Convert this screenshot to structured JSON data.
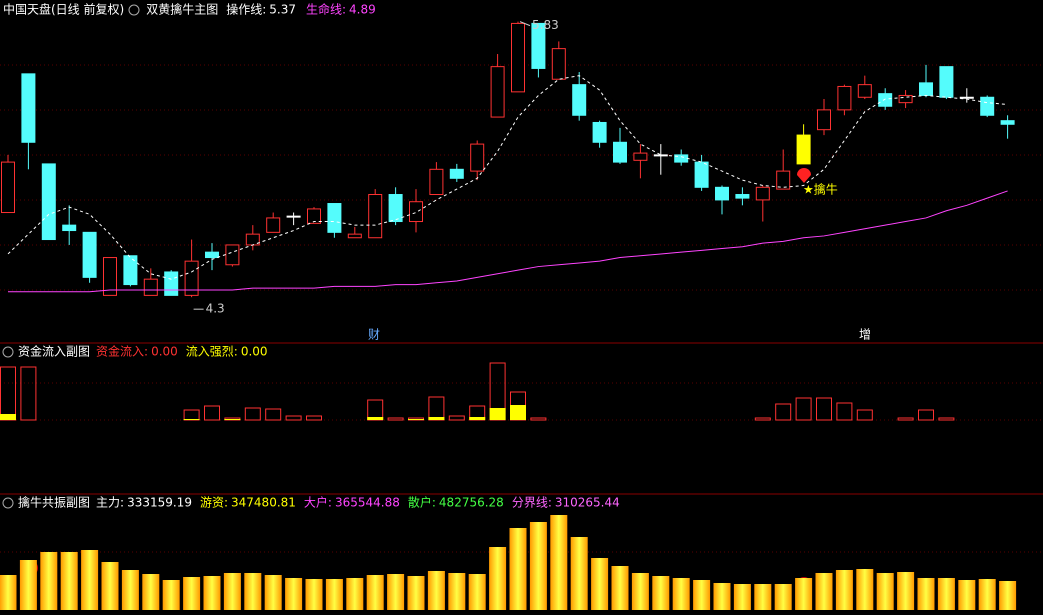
{
  "chart_data": [
    {
      "type": "candlestick",
      "title": "中国天盘(日线 前复权)",
      "subtitle": "双黄擒牛主图",
      "ylim": [
        4.09,
        5.95
      ],
      "grid": true,
      "colors": {
        "up": "#ff3232",
        "down": "#54fcfc",
        "flat": "#ffffff",
        "signal": "#ffff00"
      },
      "signal_candles": [
        39
      ],
      "markers": [
        "财",
        "增"
      ],
      "annotation": "★擒牛",
      "candles": [
        {
          "open": 4.77,
          "close": 5.05,
          "high": 5.09,
          "low": 4.77
        },
        {
          "open": 5.54,
          "close": 5.16,
          "high": 5.54,
          "low": 5.01
        },
        {
          "open": 5.04,
          "close": 4.62,
          "high": 5.04,
          "low": 4.62
        },
        {
          "open": 4.7,
          "close": 4.67,
          "high": 4.81,
          "low": 4.59
        },
        {
          "open": 4.66,
          "close": 4.41,
          "high": 4.66,
          "low": 4.38
        },
        {
          "open": 4.31,
          "close": 4.52,
          "high": 4.52,
          "low": 4.31
        },
        {
          "open": 4.53,
          "close": 4.37,
          "high": 4.53,
          "low": 4.36
        },
        {
          "open": 4.31,
          "close": 4.4,
          "high": 4.46,
          "low": 4.31
        },
        {
          "open": 4.44,
          "close": 4.31,
          "high": 4.45,
          "low": 4.31
        },
        {
          "open": 4.31,
          "close": 4.5,
          "high": 4.62,
          "low": 4.3
        },
        {
          "open": 4.55,
          "close": 4.52,
          "high": 4.6,
          "low": 4.45
        },
        {
          "open": 4.48,
          "close": 4.59,
          "high": 4.59,
          "low": 4.47
        },
        {
          "open": 4.59,
          "close": 4.65,
          "high": 4.7,
          "low": 4.56
        },
        {
          "open": 4.66,
          "close": 4.74,
          "high": 4.77,
          "low": 4.66
        },
        {
          "open": 4.75,
          "close": 4.75,
          "high": 4.77,
          "low": 4.7
        },
        {
          "open": 4.71,
          "close": 4.79,
          "high": 4.8,
          "low": 4.71
        },
        {
          "open": 4.82,
          "close": 4.66,
          "high": 4.82,
          "low": 4.63
        },
        {
          "open": 4.63,
          "close": 4.65,
          "high": 4.69,
          "low": 4.63
        },
        {
          "open": 4.63,
          "close": 4.87,
          "high": 4.9,
          "low": 4.63
        },
        {
          "open": 4.87,
          "close": 4.72,
          "high": 4.91,
          "low": 4.7
        },
        {
          "open": 4.72,
          "close": 4.83,
          "high": 4.9,
          "low": 4.66
        },
        {
          "open": 4.87,
          "close": 5.01,
          "high": 5.05,
          "low": 4.87
        },
        {
          "open": 5.01,
          "close": 4.96,
          "high": 5.04,
          "low": 4.94
        },
        {
          "open": 5.0,
          "close": 5.15,
          "high": 5.17,
          "low": 4.95
        },
        {
          "open": 5.3,
          "close": 5.58,
          "high": 5.65,
          "low": 5.3
        },
        {
          "open": 5.44,
          "close": 5.82,
          "high": 5.83,
          "low": 5.44
        },
        {
          "open": 5.82,
          "close": 5.57,
          "high": 5.81,
          "low": 5.52
        },
        {
          "open": 5.51,
          "close": 5.68,
          "high": 5.72,
          "low": 5.51
        },
        {
          "open": 5.48,
          "close": 5.31,
          "high": 5.55,
          "low": 5.28
        },
        {
          "open": 5.27,
          "close": 5.16,
          "high": 5.28,
          "low": 5.13
        },
        {
          "open": 5.16,
          "close": 5.05,
          "high": 5.24,
          "low": 5.04
        },
        {
          "open": 5.06,
          "close": 5.1,
          "high": 5.15,
          "low": 4.96
        },
        {
          "open": 5.09,
          "close": 5.09,
          "high": 5.15,
          "low": 4.98
        },
        {
          "open": 5.09,
          "close": 5.05,
          "high": 5.12,
          "low": 5.03
        },
        {
          "open": 5.05,
          "close": 4.91,
          "high": 5.09,
          "low": 4.89
        },
        {
          "open": 4.91,
          "close": 4.84,
          "high": 4.92,
          "low": 4.76
        },
        {
          "open": 4.87,
          "close": 4.85,
          "high": 4.91,
          "low": 4.81
        },
        {
          "open": 4.84,
          "close": 4.91,
          "high": 4.92,
          "low": 4.72
        },
        {
          "open": 4.9,
          "close": 5.0,
          "high": 5.12,
          "low": 4.9
        },
        {
          "open": 5.04,
          "close": 5.2,
          "high": 5.26,
          "low": 5.04
        },
        {
          "open": 5.23,
          "close": 5.34,
          "high": 5.4,
          "low": 5.2
        },
        {
          "open": 5.34,
          "close": 5.47,
          "high": 5.48,
          "low": 5.31
        },
        {
          "open": 5.41,
          "close": 5.48,
          "high": 5.53,
          "low": 5.4
        },
        {
          "open": 5.43,
          "close": 5.36,
          "high": 5.46,
          "low": 5.34
        },
        {
          "open": 5.38,
          "close": 5.42,
          "high": 5.45,
          "low": 5.35
        },
        {
          "open": 5.49,
          "close": 5.42,
          "high": 5.59,
          "low": 5.41
        },
        {
          "open": 5.58,
          "close": 5.41,
          "high": 5.58,
          "low": 5.4
        },
        {
          "open": 5.41,
          "close": 5.41,
          "high": 5.46,
          "low": 5.38
        },
        {
          "open": 5.41,
          "close": 5.31,
          "high": 5.42,
          "low": 5.3
        },
        {
          "open": 5.28,
          "close": 5.26,
          "high": 5.31,
          "low": 5.18
        }
      ],
      "series": [
        {
          "name": "操作线:",
          "color": "#ffffff",
          "dashed": true,
          "values": [
            4.54,
            4.65,
            4.76,
            4.8,
            4.76,
            4.65,
            4.52,
            4.43,
            4.4,
            4.44,
            4.51,
            4.55,
            4.59,
            4.63,
            4.67,
            4.72,
            4.72,
            4.7,
            4.7,
            4.73,
            4.77,
            4.84,
            4.9,
            4.96,
            5.11,
            5.3,
            5.42,
            5.51,
            5.53,
            5.45,
            5.28,
            5.15,
            5.09,
            5.08,
            5.05,
            5.0,
            4.95,
            4.92,
            4.91,
            4.92,
            5.01,
            5.17,
            5.33,
            5.4,
            5.41,
            5.42,
            5.41,
            5.4,
            5.38,
            5.37
          ]
        },
        {
          "name": "生命线:",
          "color": "#ff44ff",
          "dashed": false,
          "values": [
            4.33,
            4.33,
            4.33,
            4.33,
            4.33,
            4.34,
            4.34,
            4.34,
            4.34,
            4.34,
            4.34,
            4.34,
            4.35,
            4.35,
            4.35,
            4.35,
            4.36,
            4.36,
            4.36,
            4.37,
            4.37,
            4.38,
            4.39,
            4.41,
            4.43,
            4.45,
            4.47,
            4.48,
            4.49,
            4.5,
            4.52,
            4.53,
            4.54,
            4.55,
            4.56,
            4.57,
            4.58,
            4.6,
            4.61,
            4.63,
            4.64,
            4.66,
            4.68,
            4.7,
            4.72,
            4.74,
            4.78,
            4.81,
            4.85,
            4.89
          ]
        }
      ]
    },
    {
      "type": "bar",
      "title": "资金流入副图",
      "ylim": [
        0,
        60
      ],
      "readouts": [
        {
          "name": "资金流入:",
          "value": {
            "value": 0,
            "label": "0.00"
          },
          "color": "#ff3232"
        },
        {
          "name": "流入强烈:",
          "value": {
            "value": 0,
            "label": "0.00"
          },
          "color": "#ffff00"
        }
      ],
      "series": [
        {
          "color": "#ff3232",
          "hollow": true,
          "values": [
            53,
            53,
            0,
            0,
            0,
            0,
            0,
            0,
            0,
            10,
            14,
            2,
            12,
            11,
            4,
            4,
            0,
            0,
            20,
            2,
            2,
            23,
            4,
            14,
            57,
            28,
            2,
            0,
            0,
            0,
            0,
            0,
            0,
            0,
            0,
            0,
            0,
            2,
            16,
            22,
            22,
            17,
            10,
            0,
            2,
            10,
            2,
            0,
            0,
            0
          ]
        },
        {
          "color": "#ffff00",
          "hollow": false,
          "values": [
            6,
            0,
            0,
            0,
            0,
            0,
            0,
            0,
            0,
            1,
            0,
            1,
            0,
            0,
            0,
            0,
            0,
            0,
            3,
            0,
            1,
            3,
            0,
            3,
            12,
            15,
            0,
            0,
            0,
            0,
            0,
            0,
            0,
            0,
            0,
            0,
            0,
            0,
            0,
            0,
            0,
            0,
            0,
            0,
            0,
            0,
            0,
            0,
            0,
            0
          ]
        }
      ]
    },
    {
      "type": "bar",
      "title": "擒牛共振副图",
      "ylim": [
        0,
        100
      ],
      "readouts": [
        {
          "name": "主力:",
          "value": 333159.19,
          "color": "#ffffff"
        },
        {
          "name": "游资:",
          "value": 347480.81,
          "color": "#ffff00"
        },
        {
          "name": "大户:",
          "value": 365544.88,
          "color": "#ff44ff"
        },
        {
          "name": "散户:",
          "value": 482756.28,
          "color": "#44ff44"
        },
        {
          "name": "分界线:",
          "value": 310265.44,
          "color": "#ff66ff"
        }
      ],
      "series": [
        {
          "color": "#ffcc00",
          "gradient": true,
          "values": [
            35,
            50,
            58,
            58,
            60,
            48,
            40,
            36,
            30,
            33,
            34,
            37,
            37,
            35,
            32,
            31,
            31,
            32,
            35,
            36,
            34,
            39,
            37,
            36,
            63,
            82,
            88,
            95,
            73,
            52,
            44,
            37,
            34,
            32,
            30,
            27,
            26,
            26,
            26,
            32,
            37,
            40,
            41,
            37,
            38,
            32,
            32,
            30,
            31,
            29
          ]
        }
      ]
    }
  ]
}
